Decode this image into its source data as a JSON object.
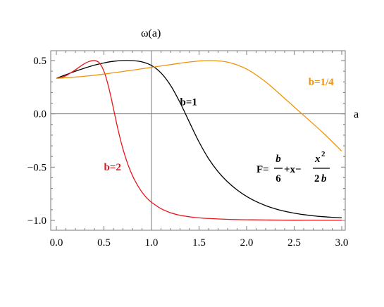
{
  "chart_data": {
    "type": "line",
    "title": "",
    "ylabel": "ω(a)",
    "xlabel": "a",
    "xlim": [
      0,
      3
    ],
    "ylim": [
      -1.1,
      0.62
    ],
    "xticks": [
      "0.0",
      "0.5",
      "1.0",
      "1.5",
      "2.0",
      "2.5",
      "3.0"
    ],
    "yticks": [
      "−1.0",
      "−0.5",
      "0.0",
      "0.5"
    ],
    "grid": false,
    "formula": {
      "lhs": "F=",
      "frac1_num": "b",
      "frac1_den": "6",
      "middle": "+x−",
      "frac2_num_base": "x",
      "frac2_num_exp": "2",
      "frac2_den_coef": "2",
      "frac2_den_var": "b"
    },
    "series": [
      {
        "name": "b=1",
        "color": "#000000",
        "x": [
          0,
          0.1,
          0.2,
          0.3,
          0.4,
          0.5,
          0.6,
          0.7,
          0.8,
          0.9,
          1.0,
          1.1,
          1.2,
          1.3,
          1.4,
          1.5,
          1.6,
          1.7,
          1.8,
          1.9,
          2.0,
          2.1,
          2.2,
          2.3,
          2.4,
          2.5,
          2.6,
          2.7,
          2.8,
          2.9,
          3.0
        ],
        "y": [
          0.333,
          0.367,
          0.4,
          0.43,
          0.457,
          0.478,
          0.493,
          0.5,
          0.499,
          0.488,
          0.454,
          0.384,
          0.268,
          0.106,
          -0.081,
          -0.264,
          -0.42,
          -0.543,
          -0.638,
          -0.714,
          -0.775,
          -0.823,
          -0.861,
          -0.891,
          -0.914,
          -0.932,
          -0.946,
          -0.957,
          -0.965,
          -0.971,
          -0.976
        ]
      },
      {
        "name": "b=2",
        "color": "#e8151b",
        "x": [
          0,
          0.05,
          0.1,
          0.15,
          0.2,
          0.25,
          0.3,
          0.35,
          0.4,
          0.45,
          0.5,
          0.55,
          0.6,
          0.65,
          0.7,
          0.75,
          0.8,
          0.85,
          0.9,
          0.95,
          1.0,
          1.1,
          1.2,
          1.3,
          1.4,
          1.5,
          1.6,
          1.8,
          2.0,
          2.2,
          2.5,
          2.8,
          3.0
        ],
        "y": [
          0.333,
          0.34,
          0.358,
          0.384,
          0.413,
          0.444,
          0.473,
          0.493,
          0.5,
          0.48,
          0.4,
          0.25,
          0.05,
          -0.155,
          -0.33,
          -0.47,
          -0.58,
          -0.665,
          -0.735,
          -0.79,
          -0.83,
          -0.89,
          -0.928,
          -0.952,
          -0.966,
          -0.976,
          -0.982,
          -0.99,
          -0.994,
          -0.996,
          -0.998,
          -0.999,
          -0.999
        ]
      },
      {
        "name": "b=1/4",
        "color": "#f0920a",
        "x": [
          0,
          0.2,
          0.4,
          0.6,
          0.8,
          1.0,
          1.2,
          1.4,
          1.6,
          1.8,
          2.0,
          2.2,
          2.4,
          2.6,
          2.8,
          3.0
        ],
        "y": [
          0.333,
          0.345,
          0.362,
          0.385,
          0.41,
          0.436,
          0.462,
          0.487,
          0.5,
          0.485,
          0.42,
          0.3,
          0.145,
          -0.015,
          -0.175,
          -0.35
        ]
      }
    ],
    "series_labels": [
      {
        "text": "b=1",
        "color": "#000000",
        "x": 1.3,
        "y": 0.08
      },
      {
        "text": "b=2",
        "color": "#e8151b",
        "x": 0.5,
        "y": -0.53
      },
      {
        "text": "b=1/4",
        "color": "#f0920a",
        "x": 2.65,
        "y": 0.27
      }
    ]
  }
}
